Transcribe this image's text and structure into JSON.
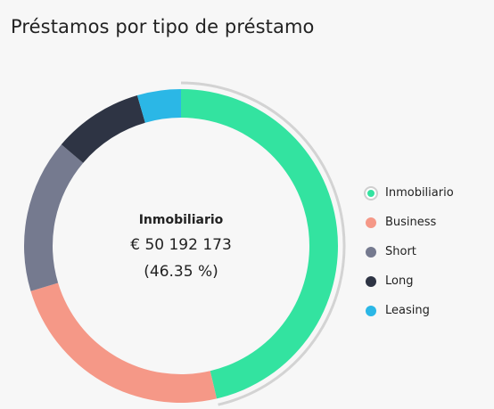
{
  "title": "Préstamos por tipo de préstamo",
  "chart_data": {
    "type": "pie",
    "title": "Préstamos por tipo de préstamo",
    "categories": [
      "Inmobiliario",
      "Business",
      "Short",
      "Long",
      "Leasing"
    ],
    "values": [
      46.35,
      24.0,
      15.85,
      9.3,
      4.5
    ],
    "colors": [
      "#33e3a0",
      "#f59887",
      "#757a8f",
      "#2e3444",
      "#2bb7e6"
    ],
    "legend": "right",
    "highlighted": {
      "name": "Inmobiliario",
      "amount": "€ 50 192 173",
      "percent": "(46.35 %)"
    }
  }
}
